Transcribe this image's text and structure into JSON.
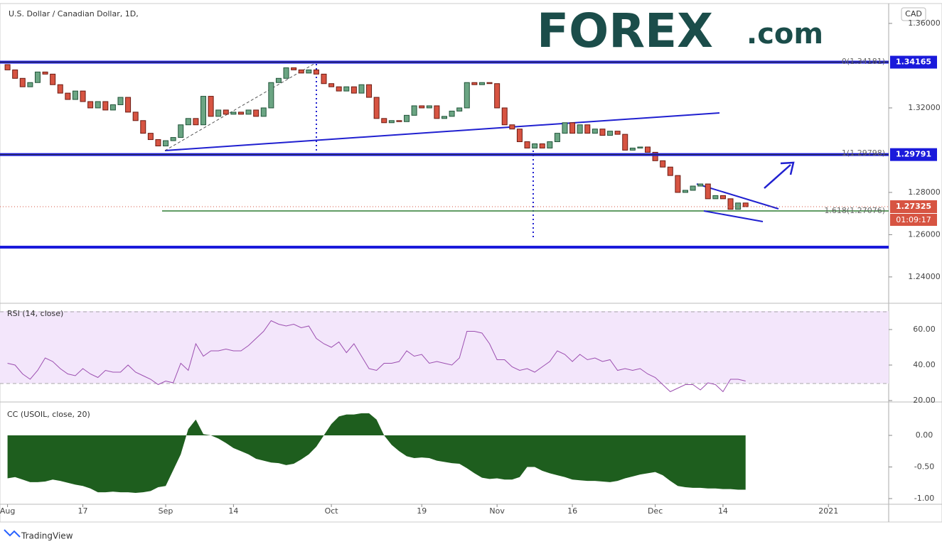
{
  "header": {
    "title": "U.S. Dollar / Canadian Dollar, 1D,",
    "currency": "CAD",
    "logo": "FOREX",
    "logo_suffix": ".com",
    "footer": "TradingView"
  },
  "chart_data": [
    {
      "type": "candlestick",
      "ylim": [
        1.2282,
        1.3694
      ],
      "yticks": [
        {
          "value": 1.36,
          "label": "1.36000"
        },
        {
          "value": 1.32,
          "label": "1.32000"
        },
        {
          "value": 1.28,
          "label": "1.28000"
        },
        {
          "value": 1.26,
          "label": "1.26000"
        },
        {
          "value": 1.24,
          "label": "1.24000"
        }
      ],
      "xlim": [
        -1,
        117
      ],
      "xticks": [
        {
          "value": 0,
          "label": "Aug"
        },
        {
          "value": 10,
          "label": "17"
        },
        {
          "value": 21,
          "label": "Sep"
        },
        {
          "value": 30,
          "label": "14"
        },
        {
          "value": 43,
          "label": "Oct"
        },
        {
          "value": 55,
          "label": "19"
        },
        {
          "value": 65,
          "label": "Nov"
        },
        {
          "value": 75,
          "label": "16"
        },
        {
          "value": 86,
          "label": "Dec"
        },
        {
          "value": 95,
          "label": "14"
        },
        {
          "value": 109,
          "label": "2021"
        }
      ],
      "up_color": "#6ba583",
      "down_color": "#d75442",
      "open": [
        1.3405,
        1.338,
        1.334,
        1.33,
        1.332,
        1.337,
        1.336,
        1.331,
        1.327,
        1.324,
        1.328,
        1.323,
        1.32,
        1.323,
        1.319,
        1.3215,
        1.325,
        1.318,
        1.314,
        1.308,
        1.305,
        1.302,
        1.3045,
        1.306,
        1.312,
        1.315,
        1.312,
        1.3255,
        1.316,
        1.319,
        1.317,
        1.318,
        1.317,
        1.319,
        1.316,
        1.32,
        1.332,
        1.334,
        1.339,
        1.338,
        1.3365,
        1.338,
        1.336,
        1.3315,
        1.33,
        1.328,
        1.33,
        1.327,
        1.331,
        1.325,
        1.315,
        1.313,
        1.314,
        1.3135,
        1.3165,
        1.321,
        1.32,
        1.321,
        1.315,
        1.316,
        1.3185,
        1.32,
        1.332,
        1.331,
        1.332,
        1.3315,
        1.32,
        1.312,
        1.31,
        1.304,
        1.301,
        1.303,
        1.301,
        1.304,
        1.308,
        1.313,
        1.308,
        1.312,
        1.308,
        1.31,
        1.307,
        1.309,
        1.3075,
        1.3,
        1.301,
        1.3015,
        1.299,
        1.295,
        1.292,
        1.288,
        1.28,
        1.281,
        1.283,
        1.284,
        1.277,
        1.2785,
        1.277,
        1.272,
        1.275
      ],
      "close": [
        1.338,
        1.334,
        1.33,
        1.332,
        1.337,
        1.336,
        1.331,
        1.327,
        1.324,
        1.328,
        1.323,
        1.32,
        1.323,
        1.319,
        1.3215,
        1.325,
        1.318,
        1.314,
        1.308,
        1.305,
        1.302,
        1.3045,
        1.306,
        1.312,
        1.315,
        1.312,
        1.3255,
        1.316,
        1.319,
        1.317,
        1.318,
        1.317,
        1.319,
        1.316,
        1.32,
        1.332,
        1.334,
        1.339,
        1.338,
        1.3365,
        1.338,
        1.336,
        1.3315,
        1.33,
        1.328,
        1.33,
        1.327,
        1.331,
        1.325,
        1.315,
        1.313,
        1.314,
        1.3135,
        1.3165,
        1.321,
        1.32,
        1.321,
        1.315,
        1.316,
        1.3185,
        1.32,
        1.332,
        1.331,
        1.332,
        1.3315,
        1.32,
        1.312,
        1.31,
        1.304,
        1.301,
        1.303,
        1.301,
        1.304,
        1.308,
        1.313,
        1.308,
        1.312,
        1.308,
        1.31,
        1.307,
        1.309,
        1.3075,
        1.3,
        1.301,
        1.3015,
        1.299,
        1.295,
        1.292,
        1.288,
        1.28,
        1.281,
        1.283,
        1.284,
        1.277,
        1.2785,
        1.277,
        1.272,
        1.275,
        1.27325
      ],
      "price_labels": [
        {
          "value": 1.34165,
          "color": "#1a1adb"
        },
        {
          "value": 1.29791,
          "color": "#1a1adb"
        },
        {
          "value": 1.27325,
          "color": "#d75442"
        }
      ],
      "countdown": "01:09:17",
      "fib_labels": [
        "0(1.34181)",
        "1(1.29798)",
        "1.618(1.27076)"
      ]
    },
    {
      "type": "line",
      "title": "RSI (14, close)",
      "color": "#9c4fb0",
      "ylim": [
        19.6,
        74.4
      ],
      "yticks": [
        {
          "value": 60,
          "label": "60.00"
        },
        {
          "value": 40,
          "label": "40.00"
        },
        {
          "value": 20,
          "label": "20.00"
        }
      ],
      "values": [
        41,
        40,
        35,
        32,
        37,
        44,
        42,
        38,
        35,
        34,
        38,
        35,
        33,
        37,
        36,
        36,
        40,
        36,
        34,
        32,
        29,
        31,
        30,
        41,
        37,
        52,
        45,
        48,
        48,
        49,
        48,
        48,
        51,
        55,
        59,
        65,
        63,
        62,
        63,
        61,
        62,
        55,
        52,
        50,
        53,
        47,
        52,
        45,
        38,
        37,
        41,
        41,
        42,
        48,
        45,
        46,
        41,
        42,
        41,
        40,
        44,
        59,
        59,
        58,
        52,
        43,
        43,
        39,
        37,
        38,
        36,
        39,
        42,
        48,
        46,
        42,
        46,
        43,
        44,
        42,
        43,
        37,
        38,
        37,
        38,
        35,
        33,
        29,
        25,
        27,
        29,
        29,
        26,
        30,
        29,
        25,
        32,
        32,
        31
      ]
    },
    {
      "type": "area",
      "title": "CC (USOIL, close, 20)",
      "color": "#1e5e1e",
      "ylim": [
        -1.09,
        0.506
      ],
      "yticks": [
        {
          "value": 0,
          "label": "0.00"
        },
        {
          "value": -0.5,
          "label": "-0.50"
        },
        {
          "value": -1,
          "label": "-1.00"
        }
      ],
      "values": [
        -0.68,
        -0.66,
        -0.7,
        -0.74,
        -0.74,
        -0.73,
        -0.7,
        -0.72,
        -0.75,
        -0.78,
        -0.8,
        -0.84,
        -0.9,
        -0.9,
        -0.89,
        -0.9,
        -0.9,
        -0.91,
        -0.9,
        -0.88,
        -0.82,
        -0.8,
        -0.55,
        -0.3,
        0.1,
        0.25,
        0.02,
        0.0,
        -0.05,
        -0.12,
        -0.2,
        -0.25,
        -0.3,
        -0.37,
        -0.4,
        -0.43,
        -0.44,
        -0.47,
        -0.45,
        -0.38,
        -0.3,
        -0.18,
        0.0,
        0.18,
        0.3,
        0.33,
        0.33,
        0.35,
        0.35,
        0.25,
        0.0,
        -0.15,
        -0.25,
        -0.33,
        -0.36,
        -0.35,
        -0.36,
        -0.4,
        -0.42,
        -0.44,
        -0.45,
        -0.52,
        -0.6,
        -0.67,
        -0.69,
        -0.68,
        -0.7,
        -0.7,
        -0.66,
        -0.5,
        -0.5,
        -0.56,
        -0.6,
        -0.63,
        -0.66,
        -0.7,
        -0.71,
        -0.72,
        -0.72,
        -0.73,
        -0.74,
        -0.72,
        -0.68,
        -0.65,
        -0.62,
        -0.6,
        -0.58,
        -0.63,
        -0.72,
        -0.8,
        -0.82,
        -0.83,
        -0.83,
        -0.84,
        -0.84,
        -0.85,
        -0.85,
        -0.86,
        -0.86
      ]
    }
  ]
}
